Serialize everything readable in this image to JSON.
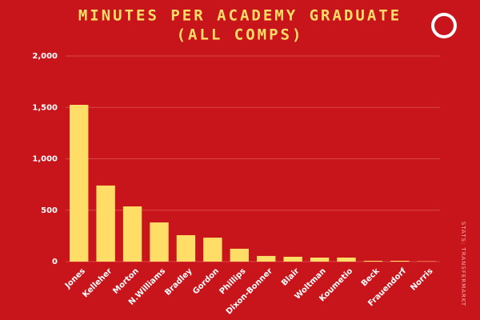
{
  "chart_data": {
    "type": "bar",
    "title": "MINUTES PER ACADEMY GRADUATE",
    "subtitle": "(ALL COMPS)",
    "source": "STATS: TRANSFERMARKT",
    "categories": [
      "Jones",
      "Kelleher",
      "Morton",
      "N.Williams",
      "Bradley",
      "Gordon",
      "Phillips",
      "Dixon-Bonner",
      "Blair",
      "Woltman",
      "Koumetio",
      "Beck",
      "Frauendorf",
      "Norris"
    ],
    "values": [
      1525,
      740,
      537,
      381,
      257,
      233,
      125,
      55,
      47,
      39,
      39,
      8,
      8,
      3
    ],
    "color": "#ffdd66",
    "ylim": [
      0,
      2000
    ],
    "yticks": [
      0,
      500,
      {
        "value": 1000,
        "label": "1,000"
      },
      {
        "value": 1500,
        "label": "1,500"
      },
      {
        "value": 2000,
        "label": "2,000"
      }
    ],
    "grid": true
  }
}
